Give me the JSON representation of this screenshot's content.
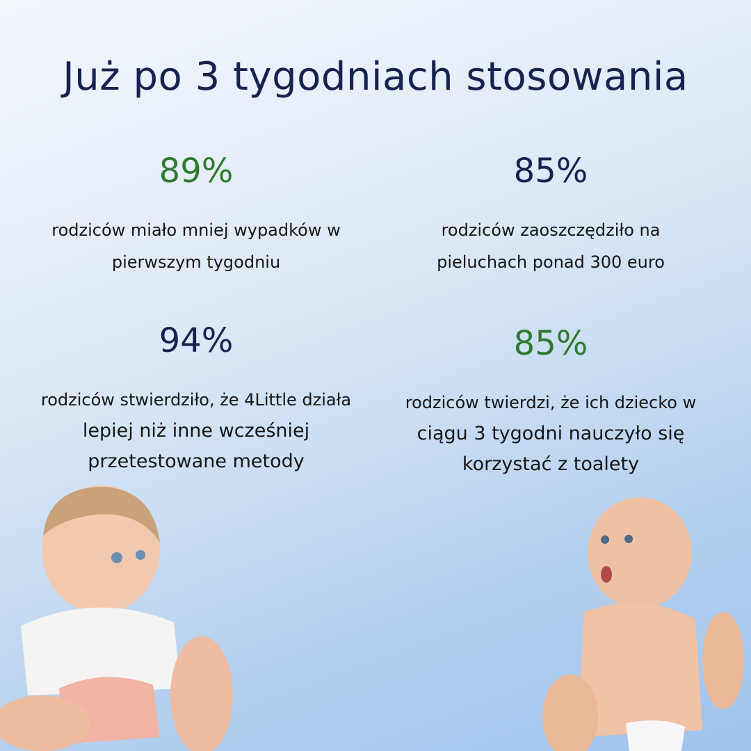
{
  "title": "Już po 3 tygodniach stosowania",
  "stats": [
    {
      "value": "89%",
      "lines": [
        "rodziców miało mniej wypadków w",
        "pierwszym tygodniu"
      ]
    },
    {
      "value": "85%",
      "lines": [
        "rodziców zaoszczędziło na",
        "pieluchach ponad 300 euro"
      ]
    },
    {
      "value": "94%",
      "lines": [
        "rodziców stwierdziło, że 4Little działa",
        "lepiej niż inne wcześniej",
        "przetestowane metody"
      ]
    },
    {
      "value": "85%",
      "lines": [
        "rodziców twierdzi, że ich dziecko w",
        "ciągu 3 tygodni nauczyło się",
        "korzystać z toalety"
      ]
    }
  ]
}
